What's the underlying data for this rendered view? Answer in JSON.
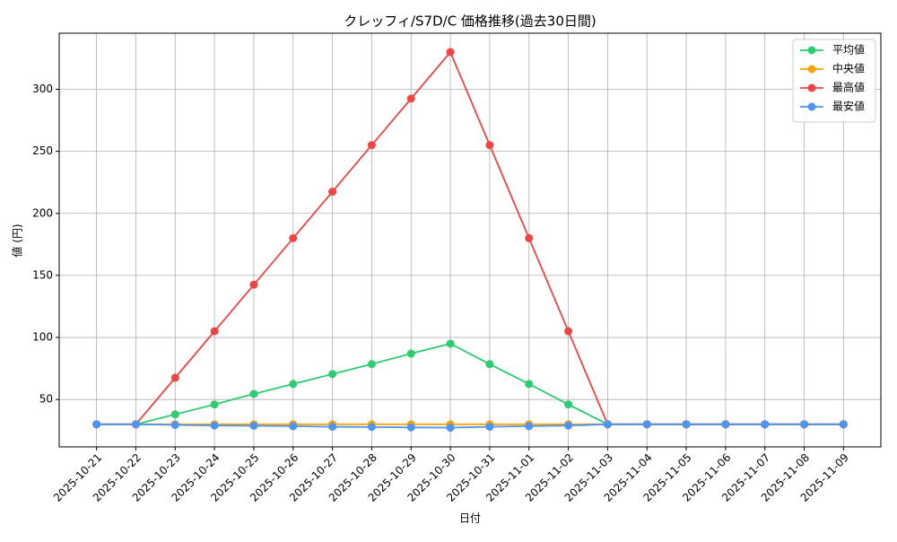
{
  "chart_data": {
    "type": "line",
    "title": "クレッフィ/S7D/C 価格推移(過去30日間)",
    "x_label": "日付",
    "y_label": "値 (円)",
    "categories": [
      "2025-10-21",
      "2025-10-22",
      "2025-10-23",
      "2025-10-24",
      "2025-10-25",
      "2025-10-26",
      "2025-10-27",
      "2025-10-28",
      "2025-10-29",
      "2025-10-30",
      "2025-10-31",
      "2025-11-01",
      "2025-11-02",
      "2025-11-03",
      "2025-11-04",
      "2025-11-05",
      "2025-11-06",
      "2025-11-07",
      "2025-11-08",
      "2025-11-09"
    ],
    "series": [
      {
        "name": "平均値",
        "color": "#2ecc71",
        "values": [
          30,
          30,
          38,
          46,
          54.5,
          62.5,
          70.5,
          78.5,
          87,
          95,
          78.5,
          62.5,
          46,
          30,
          30,
          30,
          30,
          30,
          30,
          30
        ]
      },
      {
        "name": "中央値",
        "color": "#f5a30a",
        "values": [
          30,
          30,
          30,
          30,
          30,
          30,
          30,
          30,
          30,
          30,
          30,
          30,
          30,
          30,
          30,
          30,
          30,
          30,
          30,
          30
        ]
      },
      {
        "name": "最高値",
        "color": "#ef4444",
        "values": [
          30,
          30,
          67.5,
          105,
          142.5,
          180,
          217.5,
          255,
          292.5,
          330,
          255,
          180,
          105,
          30,
          30,
          30,
          30,
          30,
          30,
          30
        ]
      },
      {
        "name": "最安値",
        "color": "#4f94ef",
        "values": [
          30,
          30,
          29.5,
          29,
          28.8,
          28.5,
          28,
          27.8,
          27.5,
          27.3,
          28,
          28.5,
          29,
          30,
          30,
          30,
          30,
          30,
          30,
          30
        ]
      }
    ],
    "ylim": [
      11.8,
      345.2
    ],
    "yticks": [
      50,
      100,
      150,
      200,
      250,
      300
    ],
    "grid": true,
    "legend": "upper right"
  }
}
